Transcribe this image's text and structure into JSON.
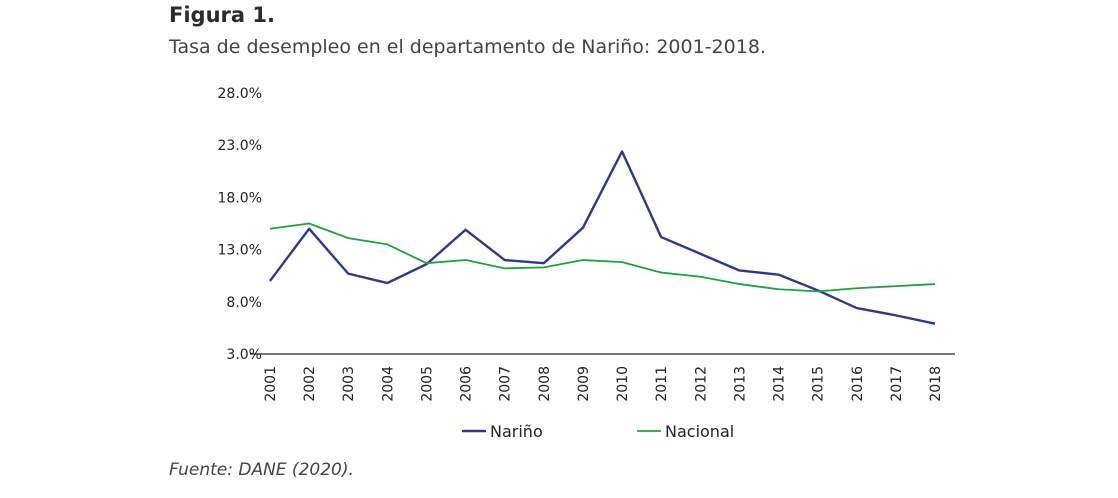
{
  "figure": {
    "label": "Figura 1.",
    "title": "Tasa de desempleo en el departamento de Nariño: 2001-2018.",
    "source": "Fuente: DANE (2020)."
  },
  "chart_data": {
    "type": "line",
    "title": "Tasa de desempleo en el departamento de Nariño: 2001-2018.",
    "xlabel": "",
    "ylabel": "",
    "ylim": [
      3.0,
      28.0
    ],
    "yticks": [
      3.0,
      8.0,
      13.0,
      18.0,
      23.0,
      28.0
    ],
    "ytick_labels": [
      "3.0%",
      "8.0%",
      "13.0%",
      "18.0%",
      "23.0%",
      "28.0%"
    ],
    "grid": false,
    "legend_position": "bottom",
    "categories": [
      "2001",
      "2002",
      "2003",
      "2004",
      "2005",
      "2006",
      "2007",
      "2008",
      "2009",
      "2010",
      "2011",
      "2012",
      "2013",
      "2014",
      "2015",
      "2016",
      "2017",
      "2018"
    ],
    "series": [
      {
        "name": "Nariño",
        "color": "#2e3a87",
        "values": [
          10.0,
          15.0,
          10.7,
          9.8,
          11.6,
          14.9,
          12.0,
          11.7,
          15.1,
          22.4,
          14.2,
          12.6,
          11.0,
          10.6,
          9.1,
          7.4,
          6.7,
          5.9
        ]
      },
      {
        "name": "Nacional",
        "color": "#21a043",
        "values": [
          15.0,
          15.5,
          14.1,
          13.5,
          11.7,
          12.0,
          11.2,
          11.3,
          12.0,
          11.8,
          10.8,
          10.4,
          9.7,
          9.2,
          9.0,
          9.3,
          9.5,
          9.7
        ]
      }
    ]
  }
}
